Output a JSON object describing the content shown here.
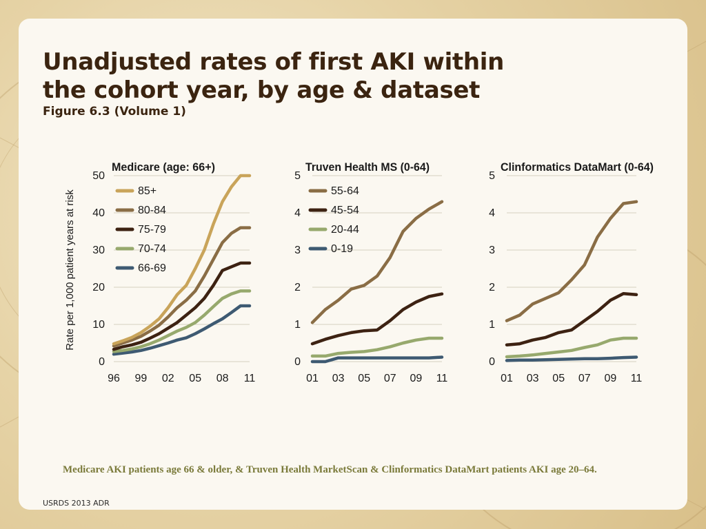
{
  "slide": {
    "title_line1": "Unadjusted rates of first AKI within",
    "title_line2": "the cohort year, by age & dataset",
    "subtitle": "Figure 6.3 (Volume 1)",
    "caption": "Medicare AKI patients age 66 & older, & Truven Health MarketScan & Clinformatics DataMart patients AKI age 20–64.",
    "source": "USRDS 2013 ADR"
  },
  "chart_data": [
    {
      "type": "line",
      "title": "Medicare (age: 66+)",
      "ylabel": "Rate per 1,000 patient years at risk",
      "xlabel": "",
      "x": [
        1996,
        1997,
        1998,
        1999,
        2000,
        2001,
        2002,
        2003,
        2004,
        2005,
        2006,
        2007,
        2008,
        2009,
        2010,
        2011
      ],
      "xticks": [
        1996,
        1999,
        2002,
        2005,
        2008,
        2011
      ],
      "xtick_labels": [
        "96",
        "99",
        "02",
        "05",
        "08",
        "11"
      ],
      "xlim": [
        1996,
        2011
      ],
      "ylim": [
        0,
        50
      ],
      "yticks": [
        0,
        10,
        20,
        30,
        40,
        50
      ],
      "ytick_labels": [
        "0",
        "10",
        "20",
        "30",
        "40",
        "50"
      ],
      "legend_position": "top-left",
      "series": [
        {
          "name": "85+",
          "color": "#c9a45a",
          "values": [
            4.8,
            5.6,
            6.5,
            7.8,
            9.5,
            11.5,
            14.5,
            18,
            20.5,
            25,
            30,
            37,
            43,
            47,
            50,
            50
          ]
        },
        {
          "name": "80-84",
          "color": "#8a6d45",
          "values": [
            4.2,
            5,
            5.8,
            6.8,
            8.2,
            9.8,
            12,
            14.5,
            16.5,
            19,
            23,
            27.5,
            32,
            34.5,
            36,
            36
          ]
        },
        {
          "name": "75-79",
          "color": "#3d2212",
          "values": [
            3.3,
            4,
            4.5,
            5.2,
            6.3,
            7.5,
            9,
            10.5,
            12.5,
            14.5,
            17,
            20.5,
            24.5,
            25.5,
            26.5,
            26.5
          ]
        },
        {
          "name": "70-74",
          "color": "#97a96d",
          "values": [
            2.7,
            3,
            3.4,
            4,
            4.8,
            5.8,
            7,
            8.2,
            9.2,
            10.5,
            12.5,
            14.8,
            17,
            18.2,
            19,
            19
          ]
        },
        {
          "name": "66-69",
          "color": "#3e5a72",
          "values": [
            2,
            2.3,
            2.6,
            3,
            3.6,
            4.3,
            5,
            5.8,
            6.4,
            7.5,
            8.8,
            10.2,
            11.5,
            13.2,
            15,
            15
          ]
        }
      ]
    },
    {
      "type": "line",
      "title": "Truven Health MS (0-64)",
      "xlabel": "",
      "x": [
        2001,
        2002,
        2003,
        2004,
        2005,
        2006,
        2007,
        2008,
        2009,
        2010,
        2011
      ],
      "xticks": [
        2001,
        2003,
        2005,
        2007,
        2009,
        2011
      ],
      "xtick_labels": [
        "01",
        "03",
        "05",
        "07",
        "09",
        "11"
      ],
      "xlim": [
        2001,
        2011
      ],
      "ylim": [
        0,
        5
      ],
      "yticks": [
        0,
        1,
        2,
        3,
        4,
        5
      ],
      "ytick_labels": [
        "0",
        "1",
        "2",
        "3",
        "4",
        "5"
      ],
      "legend_position": "top-left",
      "series": [
        {
          "name": "55-64",
          "color": "#8a6d45",
          "values": [
            1.05,
            1.4,
            1.65,
            1.95,
            2.05,
            2.3,
            2.8,
            3.5,
            3.85,
            4.1,
            4.3
          ]
        },
        {
          "name": "45-54",
          "color": "#3d2212",
          "values": [
            0.48,
            0.6,
            0.7,
            0.78,
            0.83,
            0.85,
            1.1,
            1.4,
            1.6,
            1.75,
            1.82
          ]
        },
        {
          "name": "20-44",
          "color": "#97a96d",
          "values": [
            0.15,
            0.15,
            0.22,
            0.25,
            0.27,
            0.32,
            0.4,
            0.5,
            0.58,
            0.63,
            0.63
          ]
        },
        {
          "name": "0-19",
          "color": "#3e5a72",
          "values": [
            0,
            0,
            0.1,
            0.1,
            0.1,
            0.1,
            0.1,
            0.1,
            0.1,
            0.1,
            0.12
          ]
        }
      ]
    },
    {
      "type": "line",
      "title": "Clinformatics DataMart (0-64)",
      "xlabel": "",
      "x": [
        2001,
        2002,
        2003,
        2004,
        2005,
        2006,
        2007,
        2008,
        2009,
        2010,
        2011
      ],
      "xticks": [
        2001,
        2003,
        2005,
        2007,
        2009,
        2011
      ],
      "xtick_labels": [
        "01",
        "03",
        "05",
        "07",
        "09",
        "11"
      ],
      "xlim": [
        2001,
        2011
      ],
      "ylim": [
        0,
        5
      ],
      "yticks": [
        0,
        1,
        2,
        3,
        4,
        5
      ],
      "ytick_labels": [
        "0",
        "1",
        "2",
        "3",
        "4",
        "5"
      ],
      "series": [
        {
          "name": "55-64",
          "color": "#8a6d45",
          "values": [
            1.1,
            1.25,
            1.55,
            1.7,
            1.85,
            2.2,
            2.6,
            3.35,
            3.85,
            4.25,
            4.3
          ]
        },
        {
          "name": "45-54",
          "color": "#3d2212",
          "values": [
            0.45,
            0.48,
            0.58,
            0.65,
            0.78,
            0.85,
            1.1,
            1.35,
            1.65,
            1.83,
            1.8
          ]
        },
        {
          "name": "20-44",
          "color": "#97a96d",
          "values": [
            0.13,
            0.15,
            0.18,
            0.22,
            0.26,
            0.3,
            0.38,
            0.45,
            0.58,
            0.63,
            0.63
          ]
        },
        {
          "name": "0-19",
          "color": "#3e5a72",
          "values": [
            0.03,
            0.04,
            0.04,
            0.05,
            0.06,
            0.07,
            0.08,
            0.08,
            0.09,
            0.11,
            0.12
          ]
        }
      ]
    }
  ]
}
